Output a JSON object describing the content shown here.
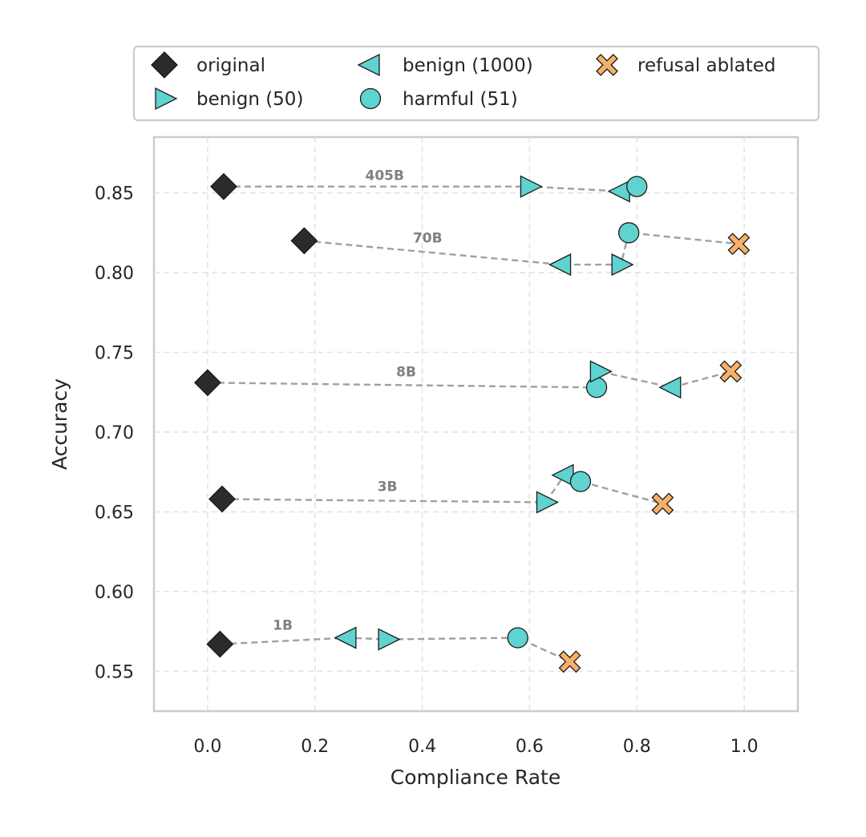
{
  "chart_data": {
    "type": "scatter",
    "xlabel": "Compliance Rate",
    "ylabel": "Accuracy",
    "xlim": [
      -0.1,
      1.1
    ],
    "ylim": [
      0.525,
      0.885
    ],
    "xticks": [
      0.0,
      0.2,
      0.4,
      0.6,
      0.8,
      1.0
    ],
    "xtick_labels": [
      "0.0",
      "0.2",
      "0.4",
      "0.6",
      "0.8",
      "1.0"
    ],
    "yticks": [
      0.55,
      0.6,
      0.65,
      0.7,
      0.75,
      0.8,
      0.85
    ],
    "ytick_labels": [
      "0.55",
      "0.60",
      "0.65",
      "0.70",
      "0.75",
      "0.80",
      "0.85"
    ],
    "grid": true,
    "legend_position": "top",
    "legend": [
      {
        "key": "original",
        "label": "original",
        "marker": "diamond",
        "color": "#2b2b2b"
      },
      {
        "key": "benign50",
        "label": "benign (50)",
        "marker": "triangle-right",
        "color": "#5fd3cf"
      },
      {
        "key": "benign1000",
        "label": "benign (1000)",
        "marker": "triangle-left",
        "color": "#5fd3cf"
      },
      {
        "key": "harmful51",
        "label": "harmful (51)",
        "marker": "circle",
        "color": "#5fd3cf"
      },
      {
        "key": "ablated",
        "label": "refusal ablated",
        "marker": "x",
        "color": "#f7b067"
      }
    ],
    "models": [
      {
        "label": "405B",
        "label_at": [
          0.33,
          0.858
        ],
        "path": [
          "original",
          "benign50",
          "benign1000",
          "harmful51"
        ],
        "points": {
          "original": [
            0.03,
            0.854
          ],
          "benign50": [
            0.6,
            0.854
          ],
          "benign1000": [
            0.77,
            0.851
          ],
          "harmful51": [
            0.8,
            0.854
          ]
        }
      },
      {
        "label": "70B",
        "label_at": [
          0.41,
          0.819
        ],
        "path": [
          "original",
          "benign1000",
          "benign50",
          "harmful51",
          "ablated"
        ],
        "points": {
          "original": [
            0.18,
            0.82
          ],
          "benign1000": [
            0.66,
            0.805
          ],
          "benign50": [
            0.77,
            0.805
          ],
          "harmful51": [
            0.785,
            0.825
          ],
          "ablated": [
            0.99,
            0.818
          ]
        }
      },
      {
        "label": "8B",
        "label_at": [
          0.37,
          0.735
        ],
        "path": [
          "original",
          "harmful51",
          "benign50",
          "benign1000",
          "ablated"
        ],
        "points": {
          "original": [
            0.0,
            0.731
          ],
          "harmful51": [
            0.725,
            0.728
          ],
          "benign50": [
            0.73,
            0.738
          ],
          "benign1000": [
            0.865,
            0.728
          ],
          "ablated": [
            0.975,
            0.738
          ]
        }
      },
      {
        "label": "3B",
        "label_at": [
          0.335,
          0.663
        ],
        "path": [
          "original",
          "benign50",
          "benign1000",
          "harmful51",
          "ablated"
        ],
        "points": {
          "original": [
            0.027,
            0.658
          ],
          "benign50": [
            0.63,
            0.656
          ],
          "benign1000": [
            0.665,
            0.673
          ],
          "harmful51": [
            0.695,
            0.669
          ],
          "ablated": [
            0.848,
            0.655
          ]
        }
      },
      {
        "label": "1B",
        "label_at": [
          0.14,
          0.576
        ],
        "path": [
          "original",
          "benign1000",
          "benign50",
          "harmful51",
          "ablated"
        ],
        "points": {
          "original": [
            0.023,
            0.567
          ],
          "benign1000": [
            0.26,
            0.571
          ],
          "benign50": [
            0.335,
            0.57
          ],
          "harmful51": [
            0.578,
            0.571
          ],
          "ablated": [
            0.675,
            0.556
          ]
        }
      }
    ]
  }
}
